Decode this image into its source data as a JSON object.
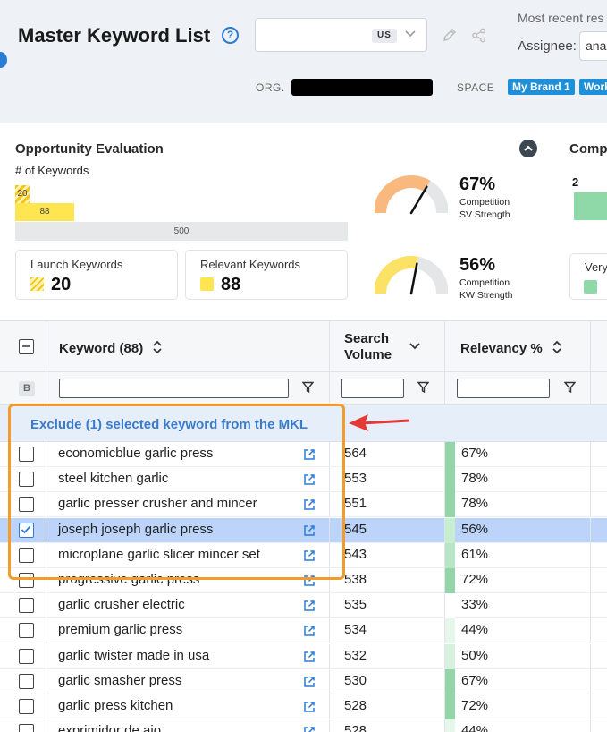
{
  "header": {
    "title": "Master Keyword List",
    "help_icon": "question-circle-icon",
    "country_code": "US",
    "recent_label": "Most recent res",
    "assignee_label": "Assignee:",
    "assignee_value": "ana",
    "org_label": "ORG.",
    "space_label": "SPACE",
    "space_tags": [
      "My Brand 1",
      "Work"
    ]
  },
  "opportunity": {
    "title": "Opportunity Evaluation",
    "subtitle": "# of Keywords",
    "bars": {
      "launch": 20,
      "relevant": 88,
      "total": 500
    },
    "launch_label": "Launch Keywords",
    "launch_value": "20",
    "relevant_label": "Relevant Keywords",
    "relevant_value": "88",
    "gauges": [
      {
        "percent": "67%",
        "caption1": "Competition",
        "caption2": "SV Strength",
        "value": 0.67,
        "color": "#f9b97e"
      },
      {
        "percent": "56%",
        "caption1": "Competition",
        "caption2": "KW Strength",
        "value": 0.56,
        "color": "#fbe165"
      }
    ]
  },
  "competition": {
    "title": "Comp",
    "value": "2",
    "legend_label": "Very"
  },
  "table": {
    "columns": {
      "keyword": "Keyword (88)",
      "search_volume_1": "Search",
      "search_volume_2": "Volume",
      "relevancy": "Relevancy %"
    },
    "filter_badge": "B",
    "exclude_banner": "Exclude (1) selected keyword from the MKL",
    "rows": [
      {
        "keyword": "economicblue garlic press",
        "volume": "564",
        "relevancy": "67%",
        "selected": false,
        "bar": "#93d5a9"
      },
      {
        "keyword": "steel kitchen garlic",
        "volume": "553",
        "relevancy": "78%",
        "selected": false,
        "bar": "#93d5a9"
      },
      {
        "keyword": "garlic presser crusher and mincer",
        "volume": "551",
        "relevancy": "78%",
        "selected": false,
        "bar": "#93d5a9"
      },
      {
        "keyword": "joseph joseph garlic press",
        "volume": "545",
        "relevancy": "56%",
        "selected": true,
        "bar": "#c7eed1"
      },
      {
        "keyword": "microplane garlic slicer mincer set",
        "volume": "543",
        "relevancy": "61%",
        "selected": false,
        "bar": "#b9e5c7"
      },
      {
        "keyword": "progressive garlic press",
        "volume": "538",
        "relevancy": "72%",
        "selected": false,
        "bar": "#93d5a9"
      },
      {
        "keyword": "garlic crusher electric",
        "volume": "535",
        "relevancy": "33%",
        "selected": false,
        "bar": "#ffffff"
      },
      {
        "keyword": "premium garlic press",
        "volume": "534",
        "relevancy": "44%",
        "selected": false,
        "bar": "#e5f6ea"
      },
      {
        "keyword": "garlic twister made in usa",
        "volume": "532",
        "relevancy": "50%",
        "selected": false,
        "bar": "#d7f1de"
      },
      {
        "keyword": "garlic smasher press",
        "volume": "530",
        "relevancy": "67%",
        "selected": false,
        "bar": "#93d5a9"
      },
      {
        "keyword": "garlic press kitchen",
        "volume": "528",
        "relevancy": "72%",
        "selected": false,
        "bar": "#93d5a9"
      },
      {
        "keyword": "exprimidor de ajo",
        "volume": "528",
        "relevancy": "44%",
        "selected": false,
        "bar": "#e5f6ea"
      }
    ]
  }
}
